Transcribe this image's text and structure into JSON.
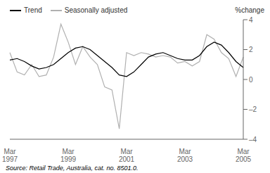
{
  "chart_data": {
    "type": "line",
    "ylabel": "%change",
    "annotations": [
      "Source: Retail Trade, Australia, cat. no. 8501.0."
    ],
    "categories": [
      "Mar\n1997",
      null,
      null,
      null,
      null,
      null,
      null,
      null,
      "Mar\n1999",
      null,
      null,
      null,
      null,
      null,
      null,
      null,
      "Mar\n2001",
      null,
      null,
      null,
      null,
      null,
      null,
      null,
      "Mar\n2003",
      null,
      null,
      null,
      null,
      null,
      null,
      null,
      "Mar\n2005"
    ],
    "series": [
      {
        "name": "Trend",
        "color": "#000000",
        "values": [
          1.3,
          1.4,
          1.2,
          0.9,
          0.7,
          0.8,
          1.0,
          1.4,
          1.8,
          2.1,
          2.2,
          2.0,
          1.6,
          1.2,
          0.8,
          0.3,
          0.2,
          0.5,
          1.0,
          1.5,
          1.7,
          1.8,
          1.6,
          1.4,
          1.3,
          1.3,
          1.6,
          2.2,
          2.5,
          2.3,
          1.8,
          1.2,
          0.8
        ]
      },
      {
        "name": "Seasonally adjusted",
        "color": "#b0b0b0",
        "values": [
          1.8,
          0.5,
          0.3,
          1.0,
          0.2,
          0.3,
          1.5,
          3.7,
          2.5,
          1.0,
          2.2,
          1.5,
          1.0,
          -0.5,
          -0.7,
          -3.3,
          1.8,
          1.6,
          1.8,
          1.7,
          1.5,
          1.6,
          1.5,
          1.1,
          1.2,
          0.9,
          1.2,
          3.0,
          2.7,
          1.8,
          1.4,
          0.2,
          1.5
        ]
      }
    ],
    "ylim": [
      -4,
      4
    ],
    "yticks": [
      {
        "value": -4,
        "label": "–4"
      },
      {
        "value": -2,
        "label": "–2"
      },
      0,
      2,
      4
    ],
    "grid": false,
    "legend": "top-left"
  }
}
